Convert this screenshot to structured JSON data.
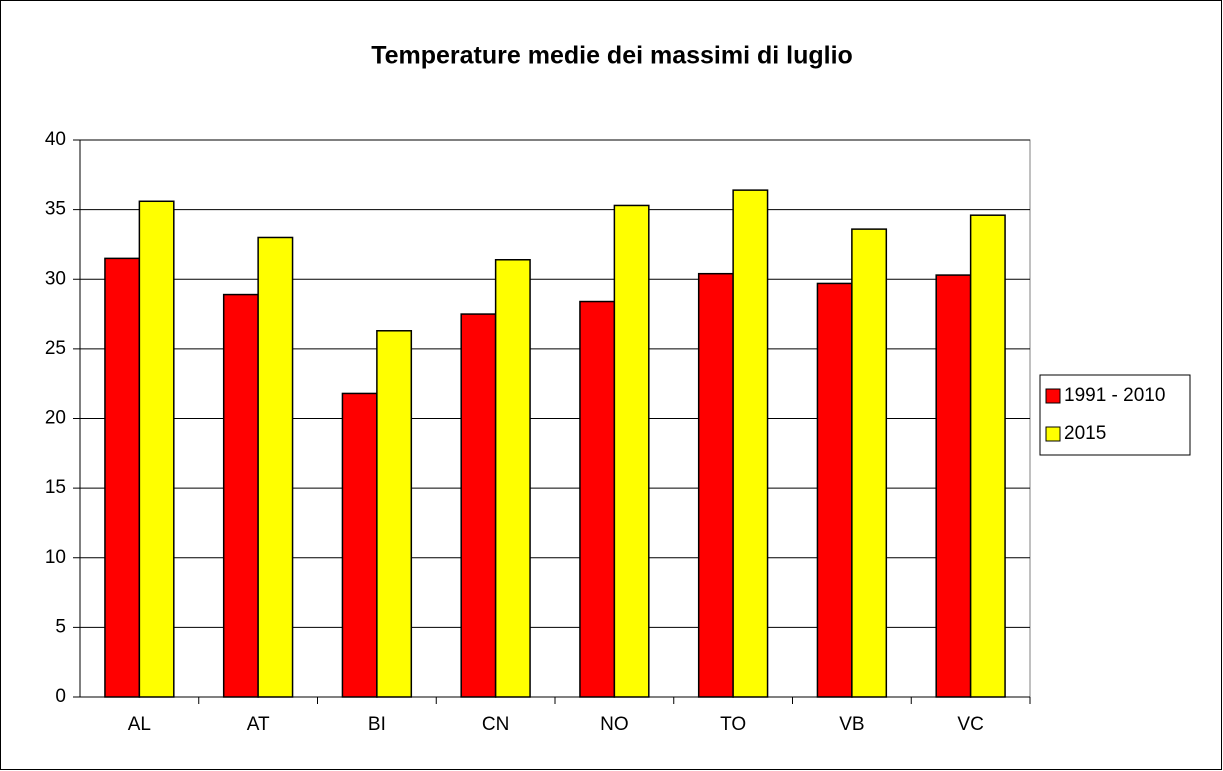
{
  "chart_data": {
    "type": "bar",
    "title": "Temperature medie dei massimi di luglio",
    "categories": [
      "AL",
      "AT",
      "BI",
      "CN",
      "NO",
      "TO",
      "VB",
      "VC"
    ],
    "series": [
      {
        "name": "1991 - 2010",
        "color": "#ff0000",
        "values": [
          31.5,
          28.9,
          21.8,
          27.5,
          28.4,
          30.4,
          29.7,
          30.3
        ]
      },
      {
        "name": "2015",
        "color": "#ffff00",
        "values": [
          35.6,
          33.0,
          26.3,
          31.4,
          35.3,
          36.4,
          33.6,
          34.6
        ]
      }
    ],
    "ylim": [
      0,
      40
    ],
    "yticks": [
      0,
      5,
      10,
      15,
      20,
      25,
      30,
      35,
      40
    ],
    "grid": true,
    "legend": "right"
  }
}
